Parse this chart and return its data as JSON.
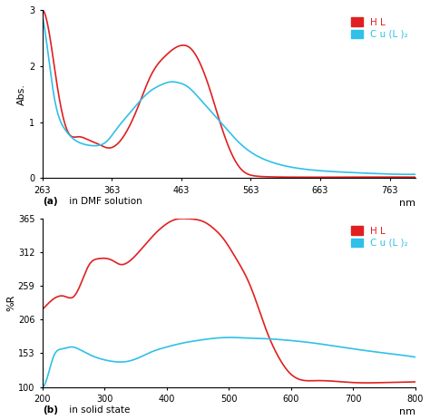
{
  "panel_a": {
    "xlabel": "nm",
    "ylabel": "Abs.",
    "label_bold": "(a)",
    "label_rest": " in DMF solution",
    "xlim": [
      263,
      800
    ],
    "ylim": [
      0,
      3.0
    ],
    "yticks": [
      0,
      1,
      2,
      3
    ],
    "xticks": [
      263,
      363,
      463,
      563,
      663,
      763
    ],
    "HL_color": "#e02020",
    "Cu_color": "#30c0e8",
    "legend_labels": [
      "H L",
      "C u (L )₂"
    ]
  },
  "panel_b": {
    "xlabel": "nm",
    "ylabel": "%R",
    "label_bold": "(b)",
    "label_rest": " in solid state",
    "xlim": [
      200,
      800
    ],
    "ylim": [
      100,
      365
    ],
    "yticks": [
      100,
      153,
      206,
      259,
      312,
      365
    ],
    "xticks": [
      200,
      300,
      400,
      500,
      600,
      700,
      800
    ],
    "HL_color": "#e02020",
    "Cu_color": "#30c0e8",
    "legend_labels": [
      "H L",
      "C u (L )₂"
    ]
  }
}
